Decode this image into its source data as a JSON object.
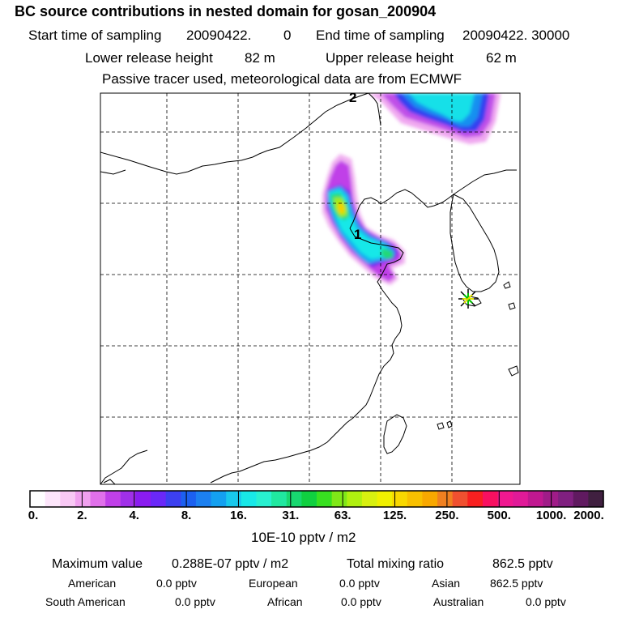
{
  "header": {
    "title": "BC  source contributions in nested domain for gosan_200904",
    "start_label": "Start time of sampling",
    "start_value": "20090422.",
    "start_hhmmss": "0",
    "end_label": "End time of sampling",
    "end_value": "20090422. 30000",
    "lower_label": "Lower release height",
    "lower_value": "82 m",
    "upper_label": "Upper release height",
    "upper_value": "62 m",
    "note": "Passive tracer used, meteorological data are from ECMWF"
  },
  "map": {
    "markers": [
      {
        "label": "1",
        "lon": 120.0,
        "lat": 37.5
      },
      {
        "label": "2",
        "lon": 118.5,
        "lat": 44.9
      }
    ],
    "station": {
      "name": "gosan",
      "lon": 126.2,
      "lat": 33.3
    }
  },
  "colorbar": {
    "ticks": [
      "0.",
      "2.",
      "4.",
      "8.",
      "16.",
      "31.",
      "63.",
      "125.",
      "250.",
      "500.",
      "1000.",
      "2000."
    ],
    "colors": [
      "#ffffff",
      "#fde6fb",
      "#f8c8f4",
      "#f0a0ee",
      "#e070ea",
      "#c040e8",
      "#a030e8",
      "#8a1cf0",
      "#6a28f8",
      "#3c40f0",
      "#1c60f0",
      "#1c80f0",
      "#14a0f0",
      "#18c8ec",
      "#18e8e8",
      "#28f0d0",
      "#20e8a0",
      "#18d870",
      "#10d040",
      "#38e020",
      "#80e818",
      "#b0f010",
      "#d8f010",
      "#f0f000",
      "#f8d800",
      "#f8c000",
      "#f8a800",
      "#f08020",
      "#f05030",
      "#f82020",
      "#f81060",
      "#f01890",
      "#e01a98",
      "#c01890",
      "#a01c88",
      "#802080",
      "#601a60",
      "#402040"
    ],
    "unit": "10E-10 pptv / m2"
  },
  "footer": {
    "max_label": "Maximum value",
    "max_value": "0.288E-07 pptv / m2",
    "total_label": "Total mixing ratio",
    "total_value": "862.5 pptv",
    "regions": [
      {
        "name": "American",
        "value": "0.0 pptv"
      },
      {
        "name": "European",
        "value": "0.0 pptv"
      },
      {
        "name": "Asian",
        "value": "862.5 pptv"
      },
      {
        "name": "South American",
        "value": "0.0 pptv"
      },
      {
        "name": "African",
        "value": "0.0 pptv"
      },
      {
        "name": "Australian",
        "value": "0.0 pptv"
      }
    ]
  }
}
